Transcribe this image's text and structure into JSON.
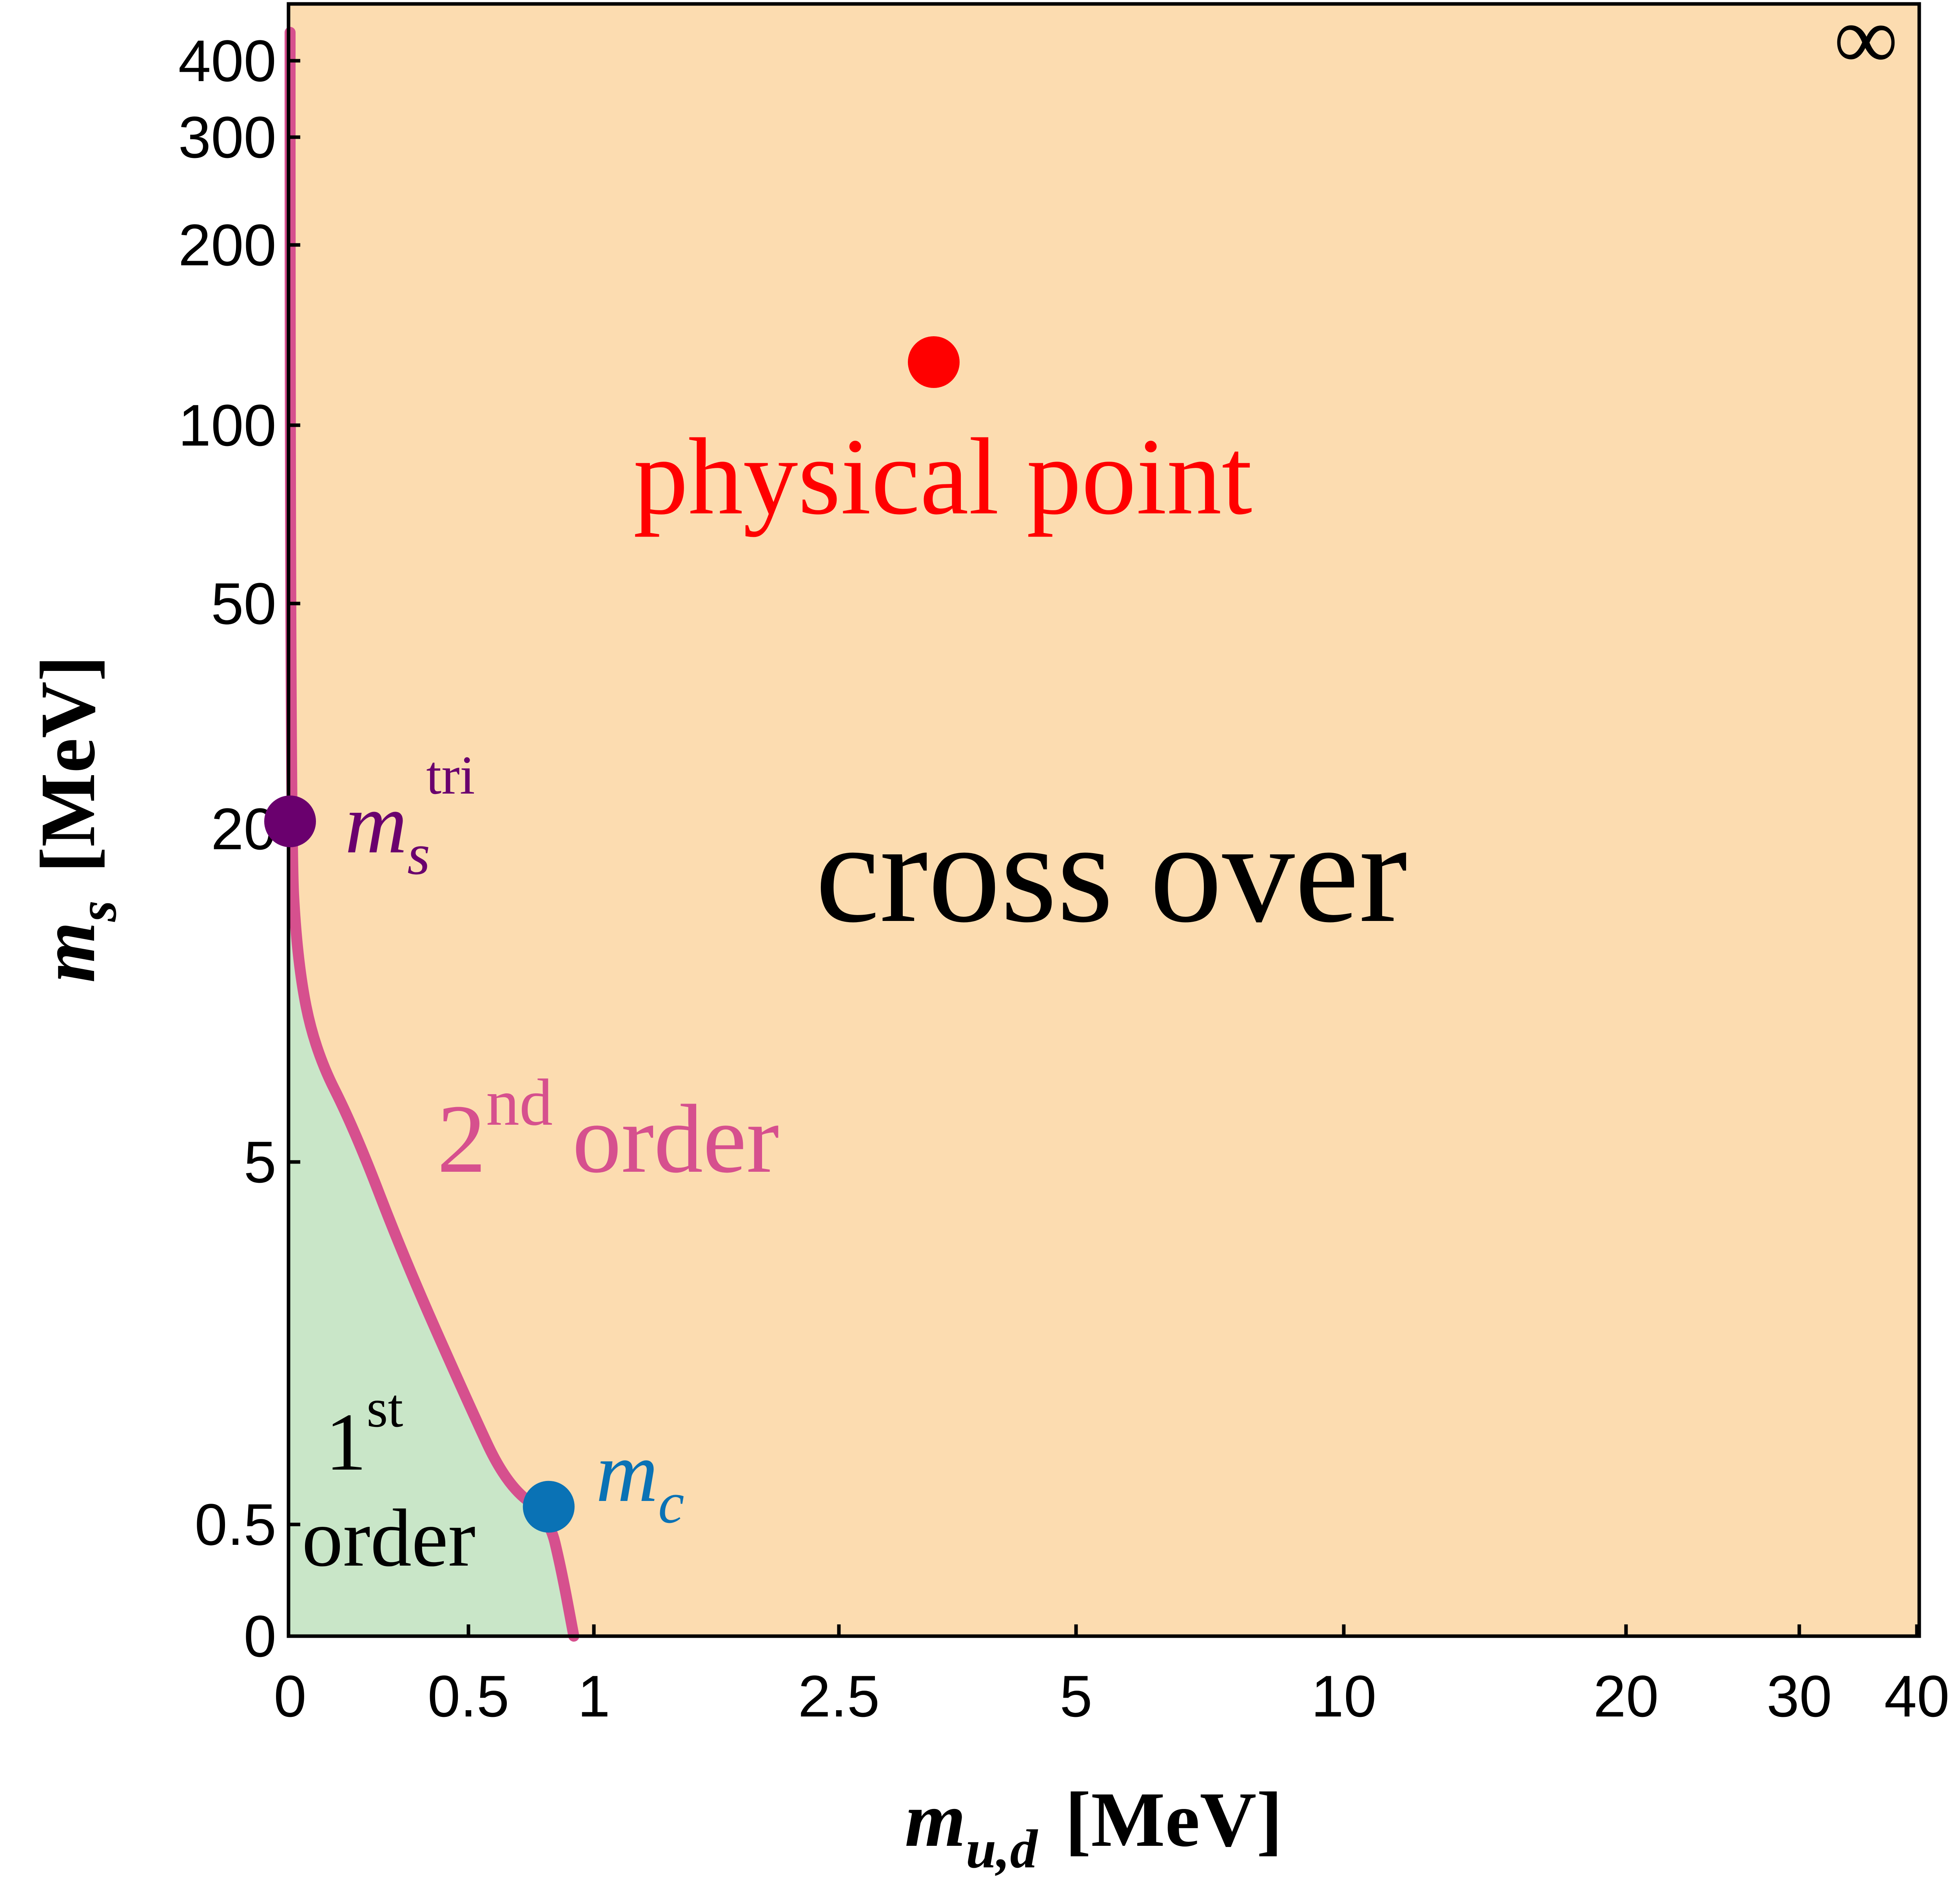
{
  "chart_data": {
    "type": "phase-diagram",
    "title": "",
    "xlabel": {
      "main": "m",
      "sub": "u,d",
      "unit": "[MeV]"
    },
    "ylabel": {
      "main": "m",
      "sub": "s",
      "unit": "[MeV]"
    },
    "infinity_label": "∞",
    "x_ticks": [
      {
        "value": 0,
        "label": "0"
      },
      {
        "value": 0.5,
        "label": "0.5"
      },
      {
        "value": 1,
        "label": "1"
      },
      {
        "value": 2.5,
        "label": "2.5"
      },
      {
        "value": 5,
        "label": "5"
      },
      {
        "value": 10,
        "label": "10"
      },
      {
        "value": 20,
        "label": "20"
      },
      {
        "value": 30,
        "label": "30"
      },
      {
        "value": 40,
        "label": "40"
      }
    ],
    "y_ticks": [
      {
        "value": 0,
        "label": "0"
      },
      {
        "value": 0.5,
        "label": "0.5"
      },
      {
        "value": 5,
        "label": "5"
      },
      {
        "value": 20,
        "label": "20"
      },
      {
        "value": 50,
        "label": "50"
      },
      {
        "value": 100,
        "label": "100"
      },
      {
        "value": 200,
        "label": "200"
      },
      {
        "value": 300,
        "label": "300"
      },
      {
        "value": 400,
        "label": "400"
      }
    ],
    "regions": [
      {
        "name": "cross over",
        "color": "#fcdcb0"
      },
      {
        "name": "1st order",
        "color": "#c9e6c8"
      }
    ],
    "boundary": {
      "name": "2nd order",
      "color": "#d6508e",
      "points": [
        [
          0,
          450
        ],
        [
          0,
          20
        ],
        [
          0.02,
          14
        ],
        [
          0.07,
          10
        ],
        [
          0.18,
          6.5
        ],
        [
          0.32,
          3.8
        ],
        [
          0.5,
          2.0
        ],
        [
          0.65,
          1.0
        ],
        [
          0.82,
          0.6
        ],
        [
          0.87,
          0.3
        ],
        [
          0.92,
          0.0
        ]
      ]
    },
    "points": [
      {
        "name": "physical point",
        "x": 3.5,
        "y": 135,
        "color": "#ff0000"
      },
      {
        "name": "m_s tri",
        "x": 0,
        "y": 21,
        "color": "#6a006e"
      },
      {
        "name": "m_c",
        "x": 0.82,
        "y": 0.72,
        "color": "#0a72b5"
      }
    ],
    "labels": {
      "cross_over": "cross over",
      "physical_point": "physical point",
      "second_order": {
        "num": "2",
        "sup": "nd",
        "rest": "order"
      },
      "first_order": {
        "num": "1",
        "sup": "st",
        "rest": "order"
      },
      "m_s_tri": {
        "main": "m",
        "sub": "s",
        "sup": "tri"
      },
      "m_c": {
        "main": "m",
        "sub": "c"
      }
    },
    "colors": {
      "crossover_fill": "#fcdcb0",
      "first_order_fill": "#c9e6c8",
      "boundary": "#d6508e",
      "physical_point": "#ff0000",
      "tri_point": "#6a006e",
      "critical_point": "#0a72b5"
    }
  }
}
